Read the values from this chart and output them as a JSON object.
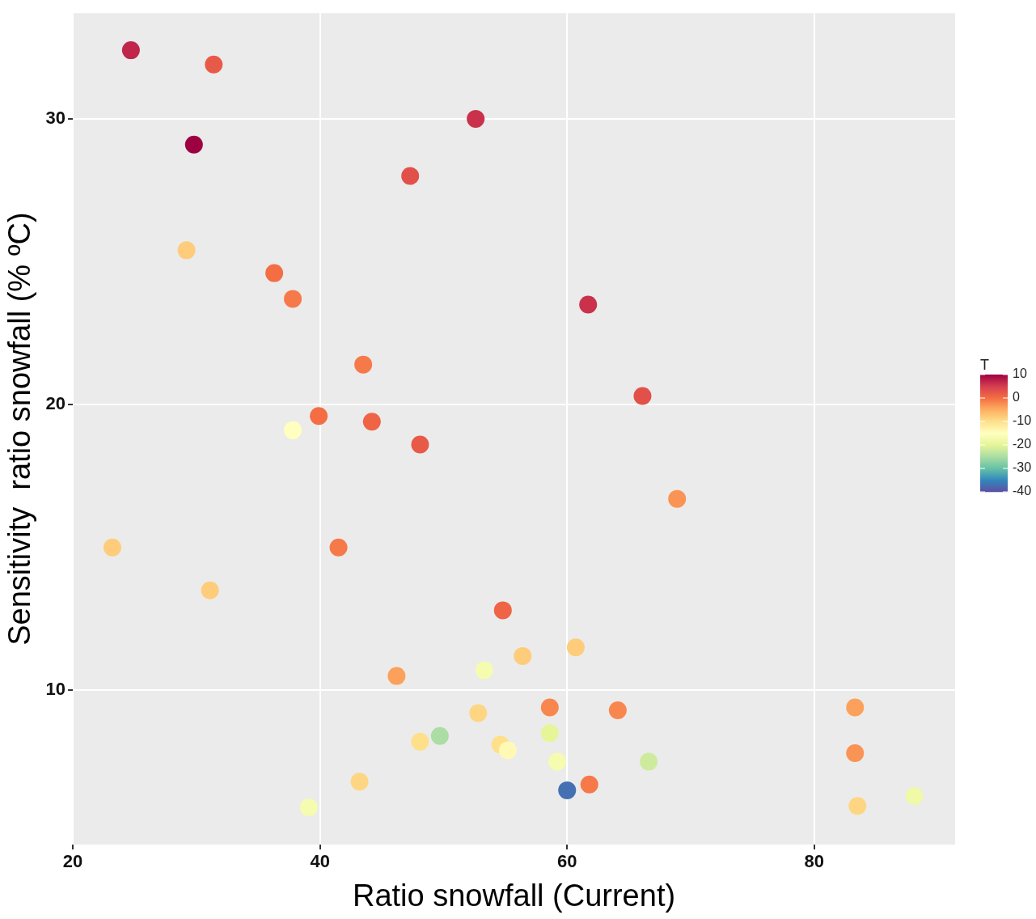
{
  "chart_data": {
    "type": "scatter",
    "xlabel": "Ratio snowfall (Current)",
    "ylabel": "Sensitivity  ratio snowfall (% ºC)",
    "clabel": "T",
    "x": [
      24.7,
      31.4,
      29.8,
      52.6,
      47.3,
      29.2,
      36.3,
      37.8,
      61.7,
      43.5,
      66.1,
      39.9,
      37.8,
      44.2,
      48.1,
      68.9,
      23.2,
      41.5,
      31.1,
      54.8,
      60.7,
      56.4,
      53.3,
      46.2,
      83.3,
      58.6,
      64.1,
      52.8,
      49.7,
      48.1,
      54.6,
      55.2,
      58.6,
      59.2,
      66.6,
      83.3,
      43.2,
      61.8,
      60.0,
      39.1,
      83.5,
      88.1
    ],
    "values": [
      32.4,
      31.9,
      29.1,
      30.0,
      28.0,
      25.4,
      24.6,
      23.7,
      23.5,
      21.4,
      20.3,
      19.6,
      19.1,
      19.4,
      18.6,
      16.7,
      15.0,
      15.0,
      13.5,
      12.8,
      11.5,
      11.2,
      10.7,
      10.5,
      9.4,
      9.4,
      9.3,
      9.2,
      8.4,
      8.2,
      8.1,
      7.9,
      8.5,
      7.5,
      7.5,
      7.8,
      6.8,
      6.7,
      6.5,
      5.9,
      5.95,
      6.3
    ],
    "cvalues": [
      7,
      2,
      10,
      6,
      3,
      -8,
      0,
      -1,
      6,
      -1,
      3,
      0,
      -15,
      1,
      2,
      -3,
      -8,
      -1,
      -8,
      1,
      -8,
      -8,
      -17,
      -4,
      -4,
      -2,
      -2,
      -9,
      -25,
      -10,
      -10,
      -14,
      -20,
      -17,
      -22,
      -3,
      -9,
      -1,
      -37,
      -17,
      -9,
      -18
    ],
    "xlim": [
      20,
      91.4
    ],
    "ylim": [
      4.6,
      33.7
    ],
    "xticks": [
      20,
      40,
      60,
      80
    ],
    "yticks": [
      10,
      20,
      30
    ],
    "clim": [
      -40,
      10
    ],
    "cticks": [
      10,
      0,
      -10,
      -20,
      -30,
      -40
    ],
    "grid": true,
    "marker": "circle",
    "legend": false
  }
}
